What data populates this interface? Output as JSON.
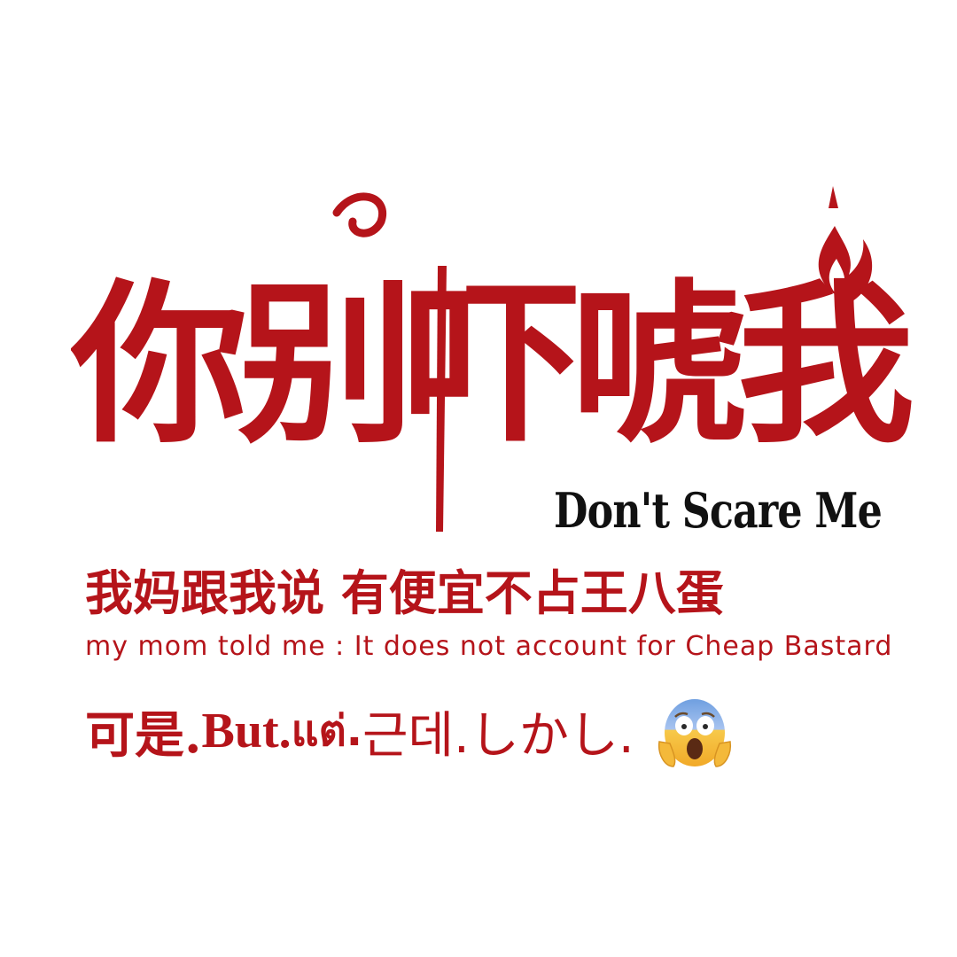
{
  "title": {
    "chinese": "你别吓唬我",
    "english": "Don't Scare Me"
  },
  "lines": {
    "chinese": "我妈跟我说 有便宜不占王八蛋",
    "english": "my mom told me : It does not account for Cheap Bastard"
  },
  "but_line": {
    "chinese": "可是.",
    "english": "But.",
    "thai": "แต่.",
    "korean": "근데.",
    "japanese": "しかし."
  },
  "icons": {
    "scream": "face-screaming-in-fear-icon"
  },
  "colors": {
    "accent": "#b5141a",
    "subtitle": "#111111",
    "background": "#ffffff"
  }
}
